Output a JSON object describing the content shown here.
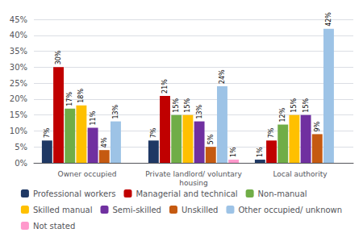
{
  "chart_data": {
    "type": "bar",
    "categories": [
      "Owner occupied",
      "Private landlord/ voluntary\nhousing",
      "Local authority"
    ],
    "series": [
      {
        "name": "Professional workers",
        "color": "#1F3864",
        "values": [
          7,
          7,
          1
        ],
        "value_labels": [
          "7%",
          "7%",
          "1%"
        ]
      },
      {
        "name": "Managerial and technical",
        "color": "#C00000",
        "values": [
          30,
          21,
          7
        ],
        "value_labels": [
          "30%",
          "21%",
          "7%"
        ]
      },
      {
        "name": "Non-manual",
        "color": "#70AD47",
        "values": [
          17,
          15,
          12
        ],
        "value_labels": [
          "17%",
          "15%",
          "12%"
        ]
      },
      {
        "name": "Skilled manual",
        "color": "#FFC000",
        "values": [
          18,
          15,
          15
        ],
        "value_labels": [
          "18%",
          "15%",
          "15%"
        ]
      },
      {
        "name": "Semi-skilled",
        "color": "#7030A0",
        "values": [
          11,
          13,
          15
        ],
        "value_labels": [
          "11%",
          "13%",
          "15%"
        ]
      },
      {
        "name": "Unskilled",
        "color": "#C55A11",
        "values": [
          4,
          5,
          9
        ],
        "value_labels": [
          "4%",
          "5%",
          "9%"
        ]
      },
      {
        "name": "Other occupied/ unknown",
        "color": "#9DC3E6",
        "values": [
          13,
          24,
          42
        ],
        "value_labels": [
          "13%",
          "24%",
          "42%"
        ]
      },
      {
        "name": "Not stated",
        "color": "#FF99CC",
        "values": [
          0,
          1,
          0
        ],
        "value_labels": [
          null,
          "1%",
          null
        ]
      }
    ],
    "ylim": [
      0,
      45
    ],
    "yticks": [
      {
        "value": 0,
        "label": "0%"
      },
      {
        "value": 5,
        "label": "5%"
      },
      {
        "value": 10,
        "label": "10%"
      },
      {
        "value": 15,
        "label": "15%"
      },
      {
        "value": 20,
        "label": "20%"
      },
      {
        "value": 25,
        "label": "25%"
      },
      {
        "value": 30,
        "label": "30%"
      },
      {
        "value": 35,
        "label": "35%"
      },
      {
        "value": 40,
        "label": "40%"
      },
      {
        "value": 45,
        "label": "45%"
      }
    ],
    "grid": true,
    "legend": "bottom",
    "data_labels": true
  }
}
